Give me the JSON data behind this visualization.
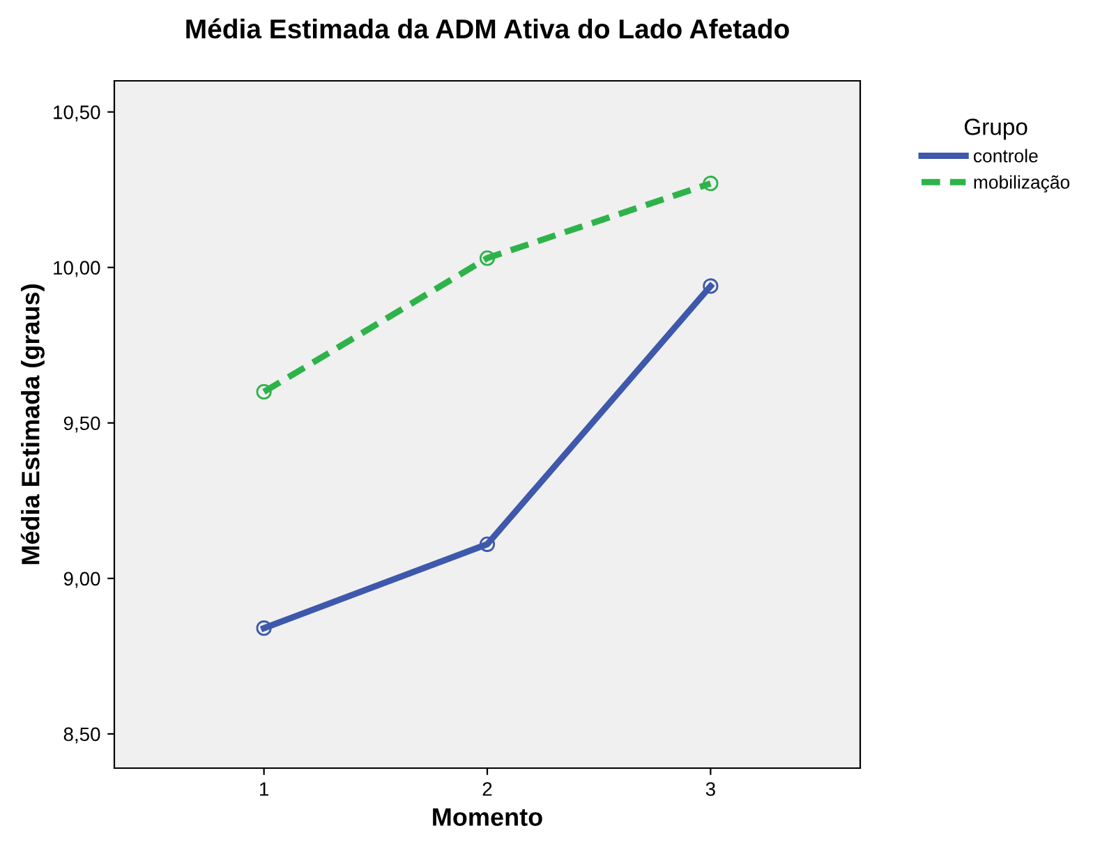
{
  "chart_data": {
    "type": "line",
    "title": "Média Estimada da ADM Ativa do Lado Afetado",
    "xlabel": "Momento",
    "ylabel": "Média Estimada (graus)",
    "legend_title": "Grupo",
    "x": [
      1,
      2,
      3
    ],
    "series": [
      {
        "name": "controle",
        "color": "#3e58ac",
        "values": [
          8.84,
          9.11,
          9.94
        ],
        "line_style": "solid"
      },
      {
        "name": "mobilização",
        "color": "#2db34a",
        "values": [
          9.6,
          10.03,
          10.27
        ],
        "line_style": "dashed"
      }
    ],
    "xlim": [
      0.33,
      3.67
    ],
    "xticks": [
      1,
      2,
      3
    ],
    "ylim": [
      8.39,
      10.6
    ],
    "yticks": [
      {
        "value": 8.5,
        "label": "8,50"
      },
      {
        "value": 9.0,
        "label": "9,00"
      },
      {
        "value": 9.5,
        "label": "9,50"
      },
      {
        "value": 10.0,
        "label": "10,00"
      },
      {
        "value": 10.5,
        "label": "10,50"
      }
    ],
    "marker": "circle",
    "grid": false,
    "legend": "right"
  }
}
